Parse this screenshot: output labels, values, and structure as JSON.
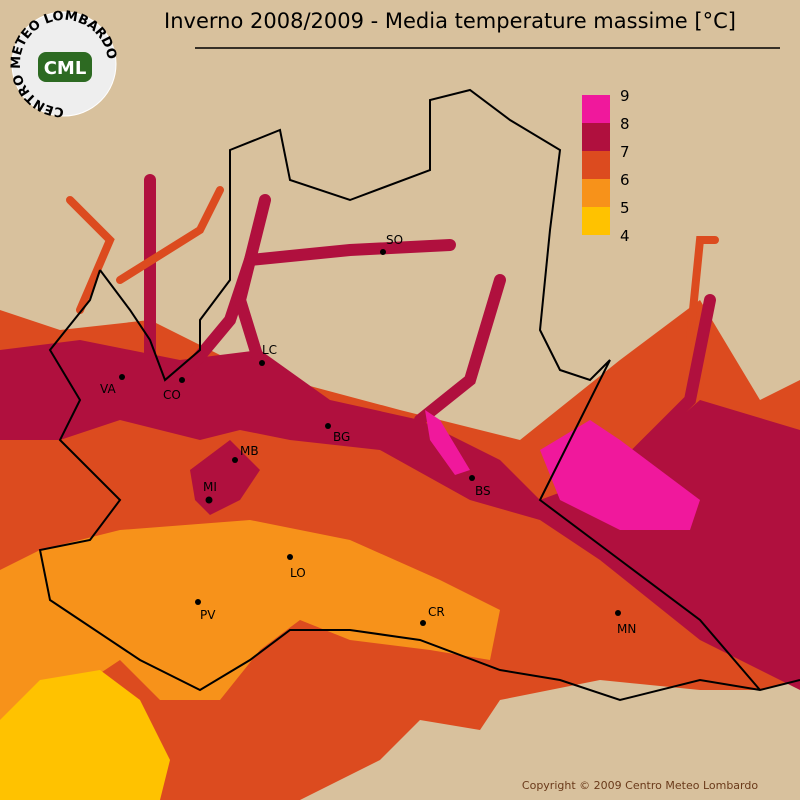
{
  "header": {
    "title": "Inverno 2008/2009 - Media temperature massime [°C]",
    "logo": {
      "ring_text": "CENTRO METEO LOMBARDO",
      "abbr": "CML"
    }
  },
  "legend": {
    "items": [
      {
        "value": 9,
        "color": "#f0189c"
      },
      {
        "value": 8,
        "color": "#b0103e"
      },
      {
        "value": 7,
        "color": "#dc4b1f"
      },
      {
        "value": 6,
        "color": "#f7921a"
      },
      {
        "value": 5,
        "color": "#ffc200"
      },
      {
        "value": 4,
        "color": "#ffd800"
      }
    ]
  },
  "cities": [
    {
      "label": "SO"
    },
    {
      "label": "LC"
    },
    {
      "label": "VA"
    },
    {
      "label": "CO"
    },
    {
      "label": "BG"
    },
    {
      "label": "MB"
    },
    {
      "label": "MI"
    },
    {
      "label": "BS"
    },
    {
      "label": "LO"
    },
    {
      "label": "PV"
    },
    {
      "label": "CR"
    },
    {
      "label": "MN"
    }
  ],
  "footer": {
    "copyright": "Copyright © 2009 Centro Meteo Lombardo"
  }
}
